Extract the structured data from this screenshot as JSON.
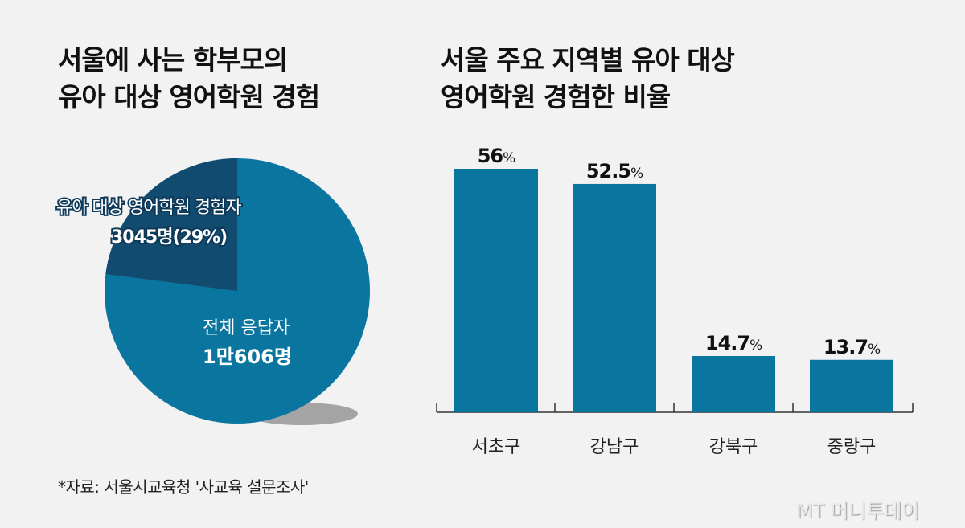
{
  "chart_data": [
    {
      "type": "pie",
      "title": "서울에 사는 학부모의 유아 대상 영어학원 경험",
      "slices": [
        {
          "label": "유아 대상 영어학원 경험자",
          "value_text": "3045명(29%)",
          "value": 3045,
          "percent": 29,
          "color": "#124b70"
        },
        {
          "label": "전체 응답자",
          "value_text": "1만606명",
          "value": 10606,
          "color": "#0a76a0"
        }
      ]
    },
    {
      "type": "bar",
      "title": "서울 주요 지역별 유아 대상 영어학원 경험한 비율",
      "categories": [
        "서초구",
        "강남구",
        "강북구",
        "중랑구"
      ],
      "values": [
        56,
        52.5,
        14.7,
        13.7
      ],
      "labels": [
        "56",
        "52.5",
        "14.7",
        "13.7"
      ],
      "unit": "%",
      "ylim": [
        0,
        60
      ],
      "color": "#0a76a0"
    }
  ],
  "titles": {
    "left": [
      "서울에 사는 학부모의",
      "유아 대상 영어학원 경험"
    ],
    "right": [
      "서울 주요 지역별 유아 대상",
      "영어학원 경험한 비율"
    ]
  },
  "source": "*자료: 서울시교육청 '사교육 설문조사'",
  "logo": "MT 머니투데이"
}
